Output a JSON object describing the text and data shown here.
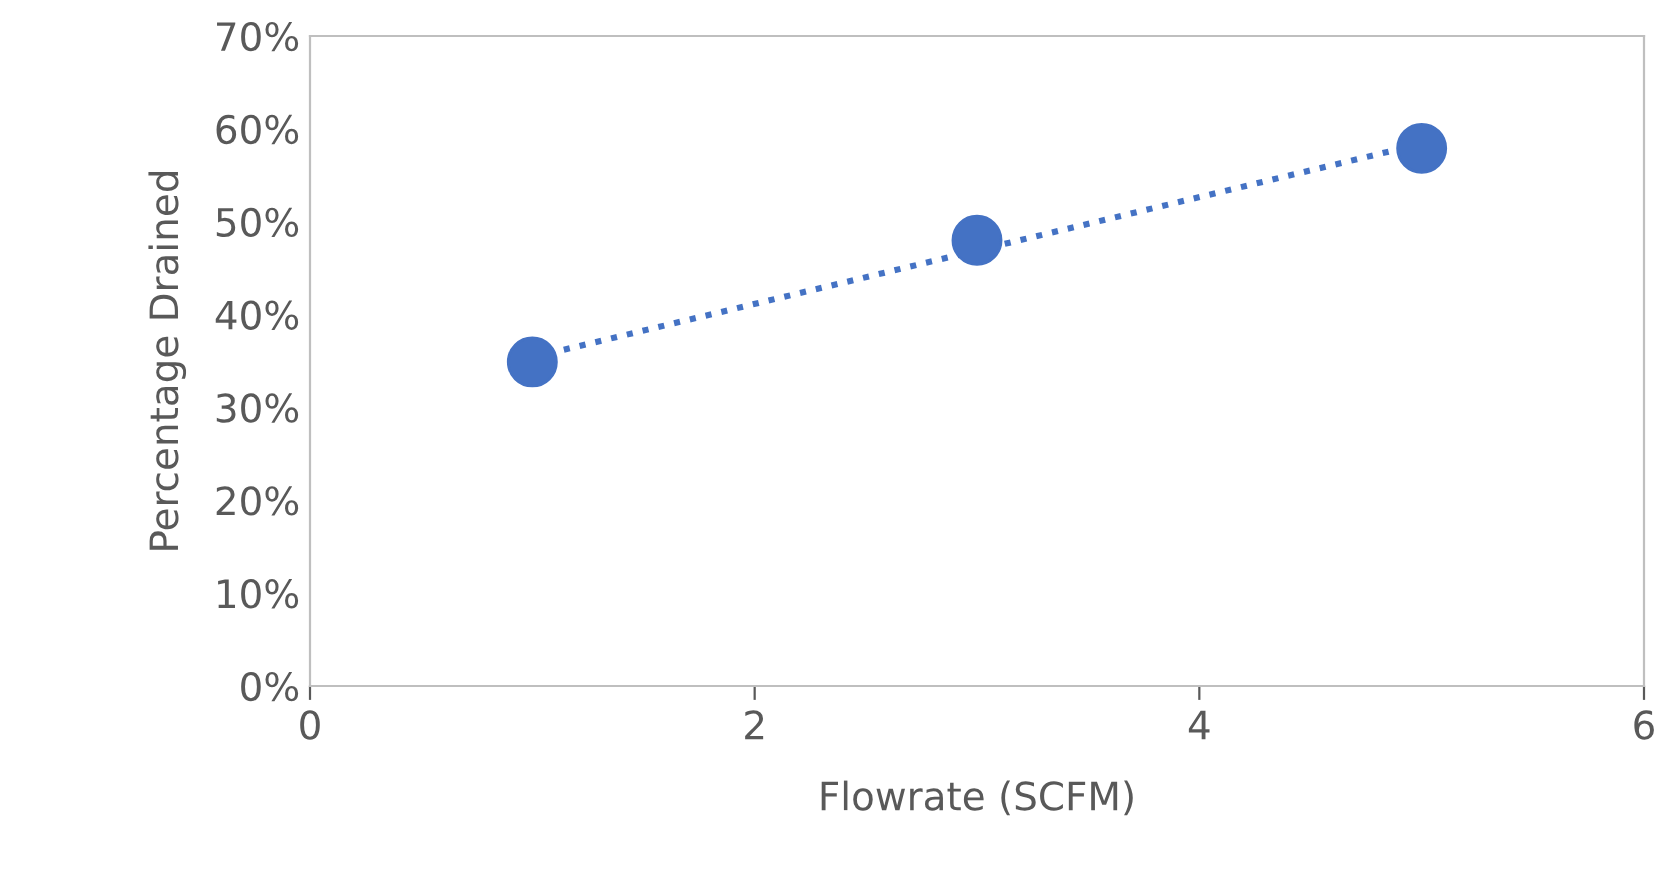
{
  "chart_data": {
    "type": "scatter",
    "xlabel": "Flowrate (SCFM)",
    "ylabel": "Percentage Drained",
    "x": [
      1,
      3,
      5
    ],
    "series": [
      {
        "color": "#4472c4",
        "values": [
          34.9,
          48.0,
          57.9
        ],
        "marker": "circle"
      },
      {
        "type": "line",
        "color": "#4472c4",
        "x": [
          1,
          5
        ],
        "values": [
          35.4,
          58.4
        ],
        "line_style": "dotted",
        "marker": "none"
      }
    ],
    "xlim": [
      0,
      6
    ],
    "xticks": [
      0,
      2,
      4,
      6
    ],
    "ylim": [
      0,
      70
    ],
    "yticks": [
      {
        "value": 0,
        "label": "0%"
      },
      {
        "value": 10,
        "label": "10%"
      },
      {
        "value": 20,
        "label": "20%"
      },
      {
        "value": 30,
        "label": "30%"
      },
      {
        "value": 40,
        "label": "40%"
      },
      {
        "value": 50,
        "label": "50%"
      },
      {
        "value": 60,
        "label": "60%"
      },
      {
        "value": 70,
        "label": "70%"
      }
    ],
    "grid": false,
    "legend": false
  }
}
